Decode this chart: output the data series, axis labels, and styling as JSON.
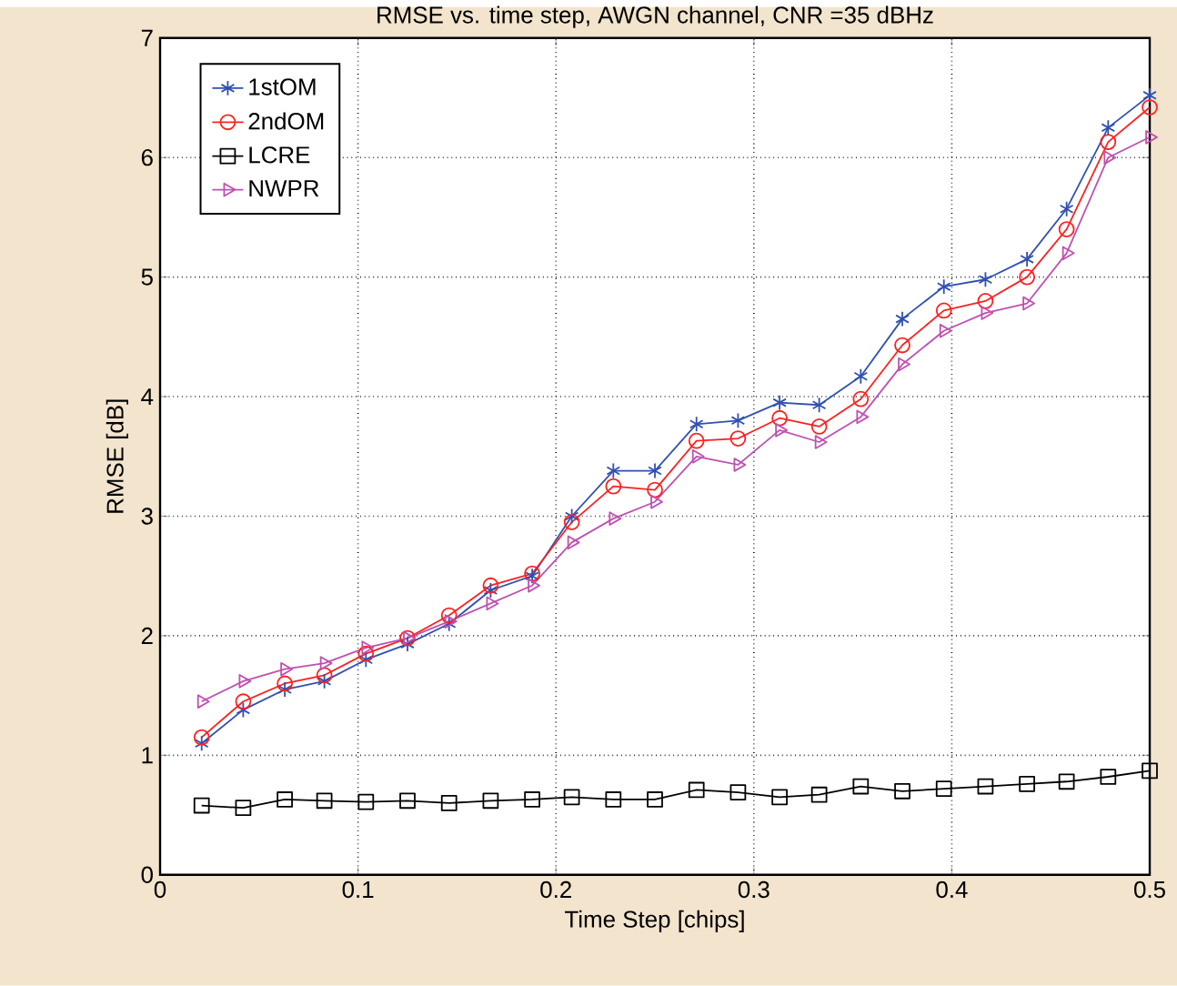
{
  "chart_data": {
    "type": "line",
    "title": "RMSE vs. time step, AWGN channel, CNR =35 dBHz",
    "xlabel": "Time Step [chips]",
    "ylabel": "RMSE [dB]",
    "x": [
      0.021,
      0.042,
      0.063,
      0.083,
      0.104,
      0.125,
      0.146,
      0.167,
      0.188,
      0.208,
      0.229,
      0.25,
      0.271,
      0.292,
      0.313,
      0.333,
      0.354,
      0.375,
      0.396,
      0.417,
      0.438,
      0.458,
      0.479,
      0.5
    ],
    "series": [
      {
        "name": "1stOM",
        "color": "#3050b0",
        "marker": "cross",
        "values": [
          1.1,
          1.38,
          1.55,
          1.62,
          1.8,
          1.93,
          2.1,
          2.38,
          2.5,
          3.0,
          3.38,
          3.38,
          3.77,
          3.8,
          3.95,
          3.93,
          4.17,
          4.65,
          4.92,
          4.98,
          5.15,
          5.57,
          6.25,
          6.52
        ]
      },
      {
        "name": "2ndOM",
        "color": "#ff2020",
        "marker": "circle",
        "values": [
          1.15,
          1.45,
          1.6,
          1.67,
          1.85,
          1.98,
          2.17,
          2.42,
          2.52,
          2.95,
          3.25,
          3.22,
          3.63,
          3.65,
          3.82,
          3.75,
          3.98,
          4.43,
          4.72,
          4.8,
          5.0,
          5.4,
          6.13,
          6.42
        ]
      },
      {
        "name": "LCRE",
        "color": "#000000",
        "marker": "square",
        "values": [
          0.58,
          0.56,
          0.63,
          0.62,
          0.61,
          0.62,
          0.6,
          0.62,
          0.63,
          0.65,
          0.63,
          0.63,
          0.71,
          0.69,
          0.65,
          0.67,
          0.74,
          0.7,
          0.72,
          0.74,
          0.76,
          0.78,
          0.82,
          0.87
        ]
      },
      {
        "name": "NWPR",
        "color": "#c050b0",
        "marker": "triangle",
        "values": [
          1.45,
          1.62,
          1.72,
          1.77,
          1.9,
          1.98,
          2.12,
          2.27,
          2.42,
          2.78,
          2.98,
          3.12,
          3.5,
          3.43,
          3.72,
          3.62,
          3.83,
          4.27,
          4.55,
          4.7,
          4.78,
          5.2,
          6.0,
          6.17
        ]
      }
    ],
    "xlim": [
      0,
      0.5
    ],
    "ylim": [
      0,
      7
    ],
    "xticks": [
      0,
      0.1,
      0.2,
      0.3,
      0.4,
      0.5
    ],
    "yticks": [
      0,
      1,
      2,
      3,
      4,
      5,
      6,
      7
    ],
    "grid": true,
    "legend": "top left",
    "line_style": "solid"
  }
}
